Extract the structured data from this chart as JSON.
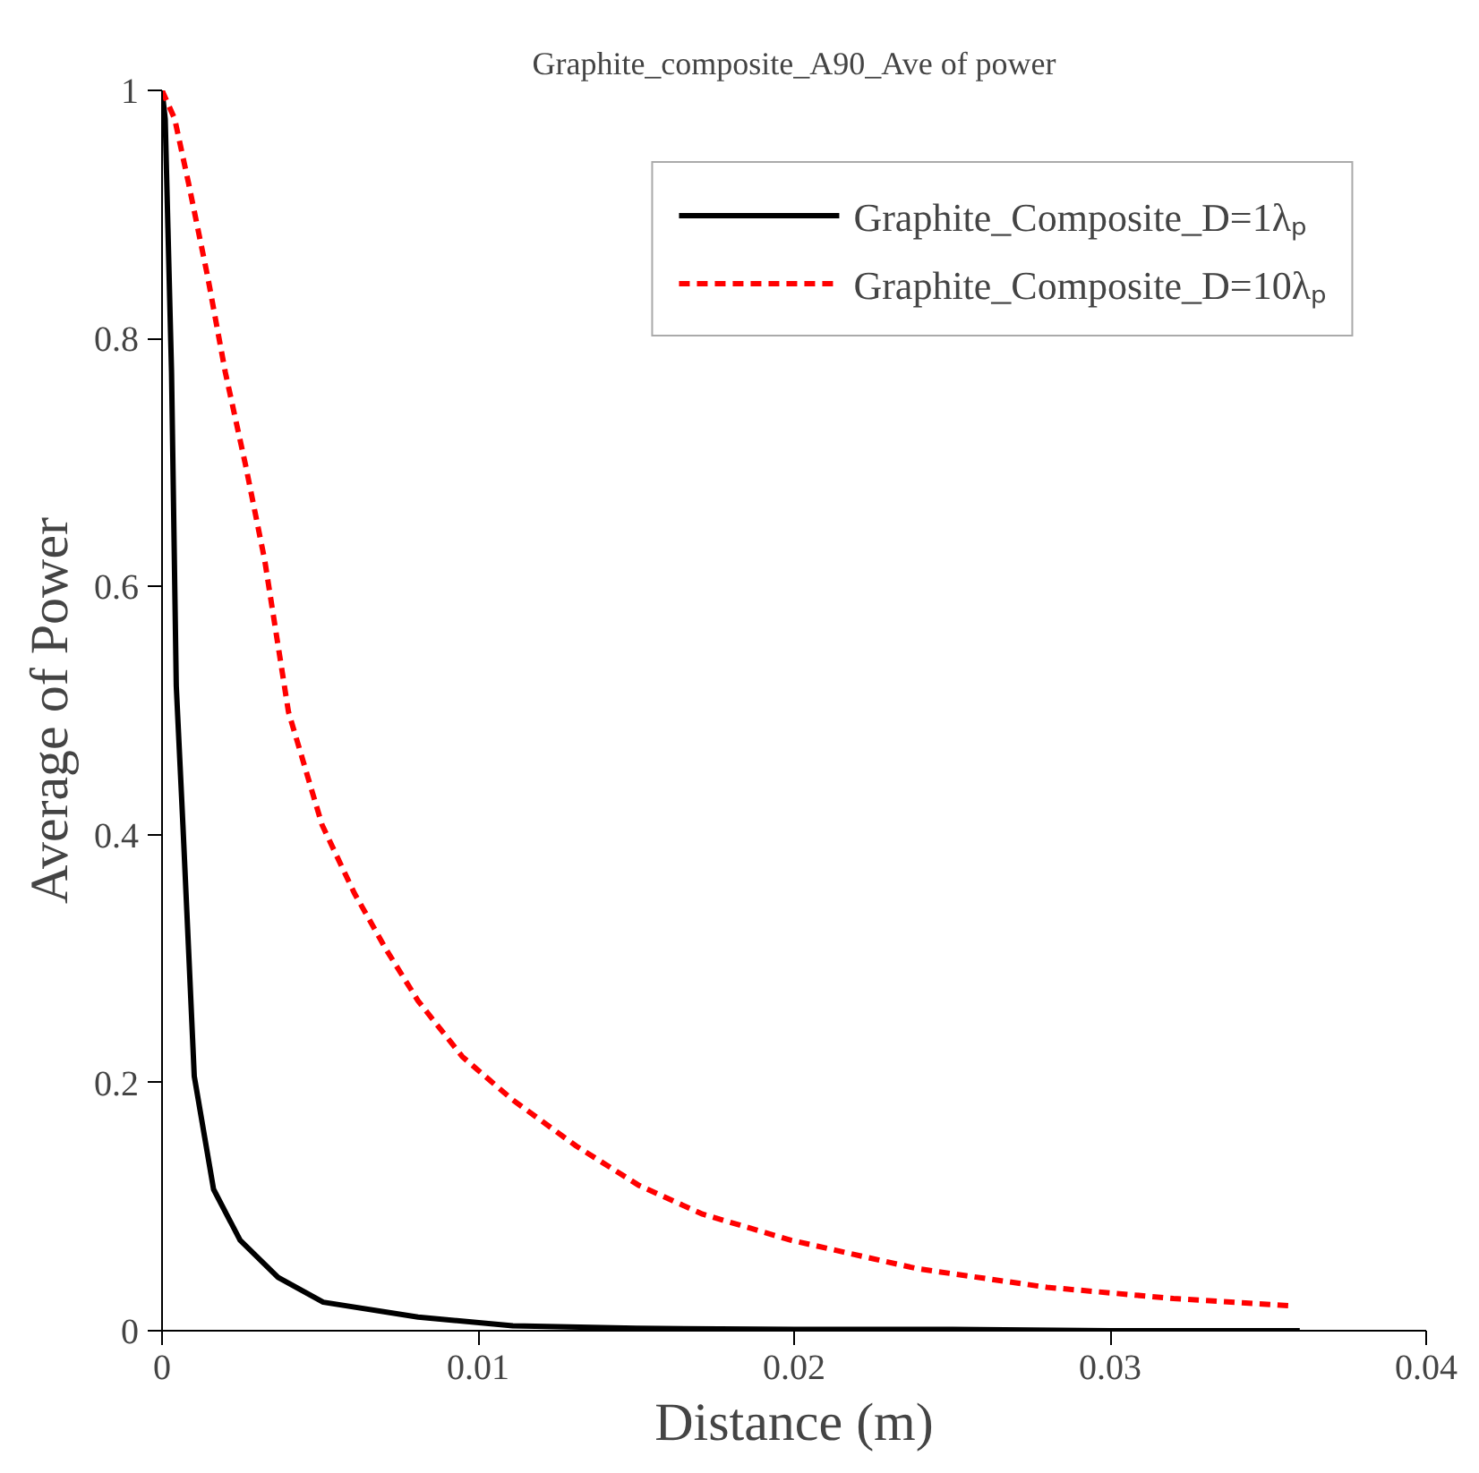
{
  "chart_data": {
    "type": "line",
    "title": "Graphite_composite_A90_Ave of power",
    "xlabel": "Distance (m)",
    "ylabel": "Average of Power",
    "xlim": [
      0,
      0.04
    ],
    "ylim": [
      0,
      1
    ],
    "xticks": [
      0,
      0.01,
      0.02,
      0.03,
      0.04
    ],
    "yticks": [
      0,
      0.2,
      0.4,
      0.6,
      0.8,
      1
    ],
    "grid": false,
    "legend": "top right",
    "series": [
      {
        "name": "Graphite_Composite_D=1λₚ",
        "color": "#000000",
        "line_style": "solid",
        "x": [
          0,
          0.0001,
          0.0003,
          0.00045,
          0.00066,
          0.00084,
          0.00102,
          0.00163,
          0.00247,
          0.00367,
          0.0051,
          0.0081,
          0.0111,
          0.015,
          0.02,
          0.025,
          0.03,
          0.036
        ],
        "values": [
          1,
          0.977,
          0.773,
          0.52,
          0.408,
          0.307,
          0.205,
          0.114,
          0.073,
          0.043,
          0.023,
          0.011,
          0.004,
          0.002,
          0.001,
          0.001,
          0,
          0
        ]
      },
      {
        "name": "Graphite_Composite_D=10λₚ",
        "color": "#ff0000",
        "line_style": "dashed",
        "x": [
          0,
          0.0004,
          0.00084,
          0.00145,
          0.002,
          0.00265,
          0.00325,
          0.004,
          0.00506,
          0.00608,
          0.0071,
          0.0081,
          0.0095,
          0.0111,
          0.0131,
          0.0151,
          0.0171,
          0.0199,
          0.0239,
          0.028,
          0.032,
          0.0358
        ],
        "values": [
          1,
          0.977,
          0.925,
          0.849,
          0.773,
          0.697,
          0.621,
          0.499,
          0.408,
          0.353,
          0.307,
          0.266,
          0.221,
          0.186,
          0.149,
          0.117,
          0.094,
          0.073,
          0.05,
          0.035,
          0.026,
          0.02
        ]
      }
    ]
  }
}
